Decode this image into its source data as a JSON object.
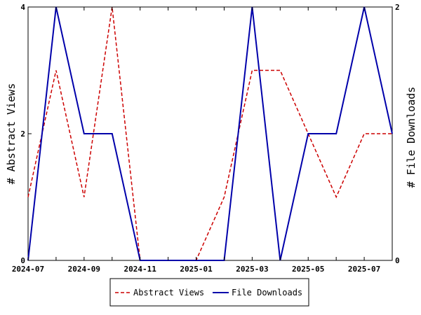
{
  "chart_data": {
    "type": "line",
    "x": [
      "2024-07",
      "2024-08",
      "2024-09",
      "2024-10",
      "2024-11",
      "2024-12",
      "2025-01",
      "2025-02",
      "2025-03",
      "2025-04",
      "2025-05",
      "2025-06",
      "2025-07",
      "2025-08"
    ],
    "x_tick_labels": [
      "2024-07",
      "2024-09",
      "2024-11",
      "2025-01",
      "2025-03",
      "2025-05",
      "2025-07"
    ],
    "left_axis": {
      "label": "# Abstract Views",
      "ylim": [
        0,
        4
      ],
      "ticks": [
        "0",
        "2",
        "4"
      ]
    },
    "right_axis": {
      "label": "# File Downloads",
      "ylim": [
        0,
        2
      ],
      "ticks": [
        "0",
        "2"
      ]
    },
    "series": [
      {
        "name": "Abstract Views",
        "axis": "left",
        "color": "#cc0000",
        "dash": "dashed",
        "values": [
          1,
          3,
          1,
          4,
          0,
          0,
          0,
          1,
          3,
          3,
          2,
          1,
          2,
          2
        ]
      },
      {
        "name": "File Downloads",
        "axis": "right",
        "color": "#0000aa",
        "dash": "solid",
        "values": [
          0,
          2,
          1,
          1,
          0,
          0,
          0,
          0,
          2,
          0,
          1,
          1,
          2,
          1
        ]
      }
    ],
    "grid": false,
    "legend_position": "bottom-center"
  }
}
